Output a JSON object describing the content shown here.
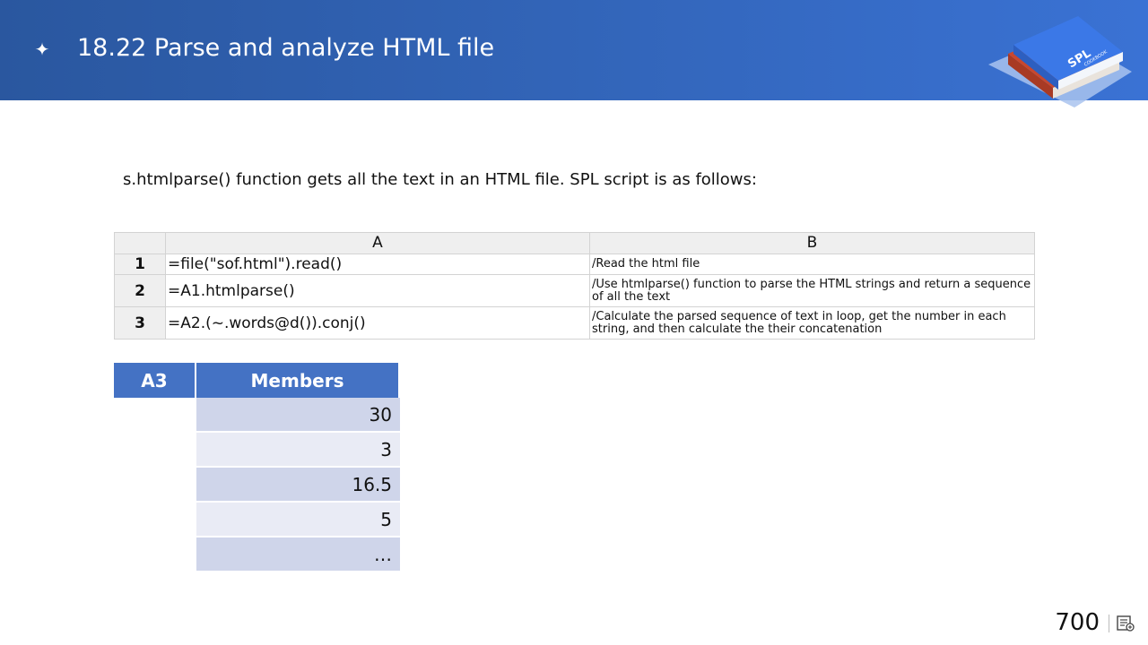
{
  "header": {
    "icon": "sparkle-icon",
    "title": "18.22 Parse and analyze HTML file",
    "logo_text_main": "SPL",
    "logo_text_sub": "COOKBOOK"
  },
  "intro": "s.htmlparse() function gets all the text in an HTML file. SPL script is as follows:",
  "script_table": {
    "columns": [
      "A",
      "B"
    ],
    "rows": [
      {
        "num": "1",
        "code": "=file(\"sof.html\").read()",
        "note": "/Read the html file"
      },
      {
        "num": "2",
        "code": "=A1.htmlparse()",
        "note": "/Use htmlparse() function to parse the HTML strings and return a sequence of all the text"
      },
      {
        "num": "3",
        "code": "=A2.(~.words@d()).conj()",
        "note": "/Calculate the parsed sequence of text in loop, get the number in each string, and then calculate the their concatenation"
      }
    ]
  },
  "result_table": {
    "cell_label": "A3",
    "column": "Members",
    "values": [
      "30",
      "3",
      "16.5",
      "5",
      "…"
    ]
  },
  "colors": {
    "header_blue": "#2f5ea8",
    "table_header_blue": "#4472c4",
    "row_dark": "#cfd5ea",
    "row_light": "#e9ebf5"
  },
  "footer": {
    "page_number": "700",
    "page_icon": "slide-notes-icon"
  }
}
